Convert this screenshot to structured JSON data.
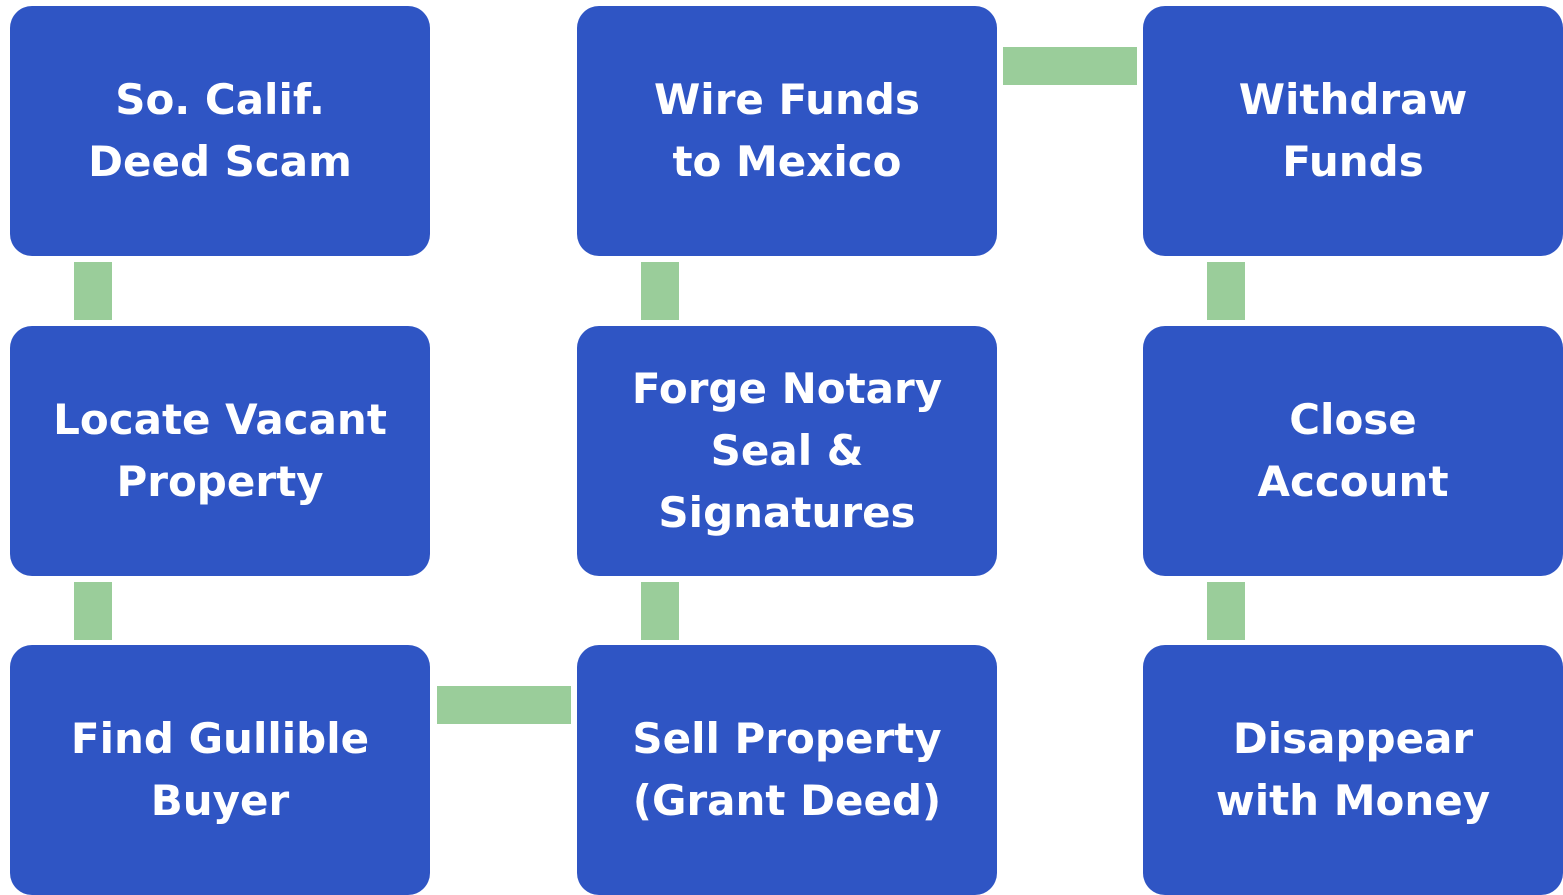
{
  "nodes": [
    {
      "label": "So. Calif.\nDeed Scam"
    },
    {
      "label": "Locate Vacant\nProperty"
    },
    {
      "label": "Find Gullible\nBuyer"
    },
    {
      "label": "Sell Property\n(Grant Deed)"
    },
    {
      "label": "Forge Notary\nSeal & Signatures"
    },
    {
      "label": "Wire Funds\nto Mexico"
    },
    {
      "label": "Withdraw\nFunds"
    },
    {
      "label": "Close\nAccount"
    },
    {
      "label": "Disappear\nwith Money"
    }
  ]
}
